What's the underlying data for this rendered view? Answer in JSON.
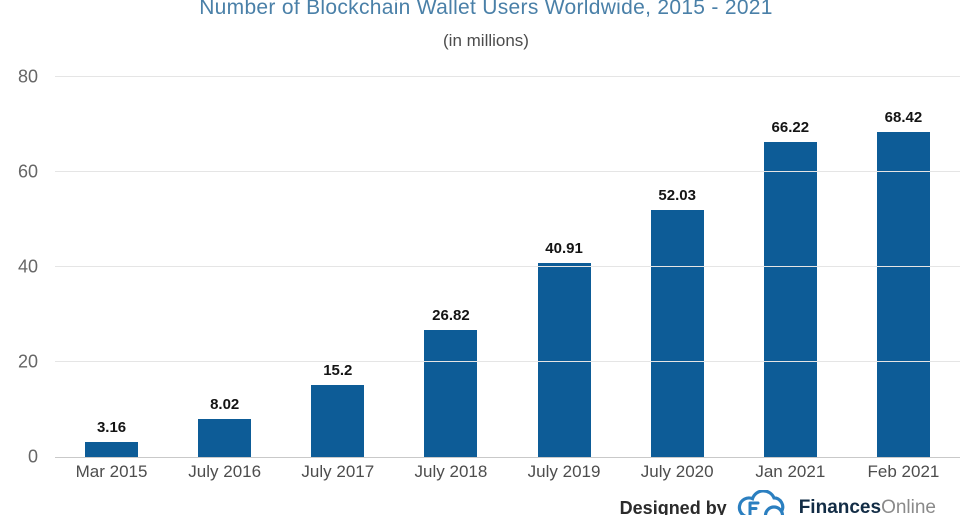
{
  "chart_data": {
    "type": "bar",
    "title": "Number of Blockchain Wallet Users Worldwide, 2015 - 2021",
    "subtitle": "(in millions)",
    "categories": [
      "Mar 2015",
      "July 2016",
      "July 2017",
      "July 2018",
      "July 2019",
      "July 2020",
      "Jan 2021",
      "Feb 2021"
    ],
    "values": [
      3.16,
      8.02,
      15.2,
      26.82,
      40.91,
      52.03,
      66.22,
      68.42
    ],
    "value_labels": [
      "3.16",
      "8.02",
      "15.2",
      "26.82",
      "40.91",
      "52.03",
      "66.22",
      "68.42"
    ],
    "ylim": [
      0,
      80
    ],
    "yticks": [
      0,
      20,
      40,
      60,
      80
    ],
    "grid": "horizontal",
    "legend": "none",
    "bar_color": "#0d5c97",
    "title_color": "#4a80a8"
  },
  "footer": {
    "designed_by": "Designed by",
    "brand_bold": "Finances",
    "brand_light": "Online",
    "logo": "finances-online-cloud-logo",
    "logo_color": "#2b7fc0"
  }
}
